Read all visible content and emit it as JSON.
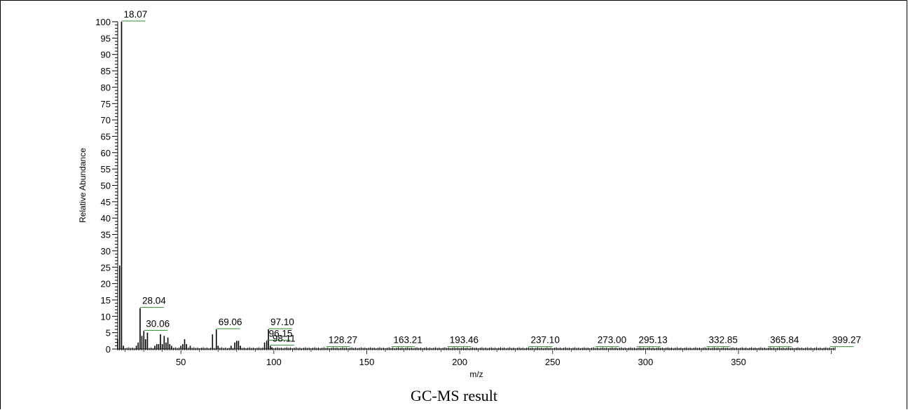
{
  "chart_data": {
    "type": "bar",
    "subtype": "mass-spectrum",
    "xlabel": "m/z",
    "ylabel": "Relative Abundance",
    "xlim": [
      16,
      402
    ],
    "ylim": [
      0,
      100
    ],
    "x_ticks": [
      50,
      100,
      150,
      200,
      250,
      300,
      350
    ],
    "y_ticks": [
      0,
      5,
      10,
      15,
      20,
      25,
      30,
      35,
      40,
      45,
      50,
      55,
      60,
      65,
      70,
      75,
      80,
      85,
      90,
      95,
      100
    ],
    "peaks": [
      {
        "mz": 16.0,
        "abundance": 3.0
      },
      {
        "mz": 17.05,
        "abundance": 25.5
      },
      {
        "mz": 18.07,
        "abundance": 100
      },
      {
        "mz": 19.1,
        "abundance": 1.0
      },
      {
        "mz": 26.0,
        "abundance": 1.0
      },
      {
        "mz": 27.0,
        "abundance": 2.0
      },
      {
        "mz": 28.04,
        "abundance": 12.5
      },
      {
        "mz": 29.0,
        "abundance": 4.0
      },
      {
        "mz": 30.06,
        "abundance": 5.5
      },
      {
        "mz": 31.0,
        "abundance": 3.0
      },
      {
        "mz": 32.0,
        "abundance": 5.0
      },
      {
        "mz": 36.0,
        "abundance": 1.0
      },
      {
        "mz": 37.0,
        "abundance": 1.5
      },
      {
        "mz": 38.0,
        "abundance": 1.5
      },
      {
        "mz": 39.0,
        "abundance": 4.5
      },
      {
        "mz": 40.0,
        "abundance": 1.5
      },
      {
        "mz": 41.0,
        "abundance": 4.0
      },
      {
        "mz": 42.0,
        "abundance": 2.0
      },
      {
        "mz": 43.0,
        "abundance": 3.5
      },
      {
        "mz": 44.0,
        "abundance": 1.5
      },
      {
        "mz": 45.0,
        "abundance": 1.0
      },
      {
        "mz": 50.0,
        "abundance": 1.0
      },
      {
        "mz": 51.0,
        "abundance": 1.5
      },
      {
        "mz": 52.0,
        "abundance": 3.0
      },
      {
        "mz": 53.0,
        "abundance": 1.5
      },
      {
        "mz": 55.0,
        "abundance": 1.0
      },
      {
        "mz": 67.0,
        "abundance": 4.5
      },
      {
        "mz": 69.06,
        "abundance": 6.0
      },
      {
        "mz": 70.0,
        "abundance": 1.0
      },
      {
        "mz": 77.0,
        "abundance": 1.0
      },
      {
        "mz": 79.0,
        "abundance": 2.0
      },
      {
        "mz": 80.0,
        "abundance": 2.5
      },
      {
        "mz": 81.0,
        "abundance": 2.5
      },
      {
        "mz": 82.0,
        "abundance": 1.0
      },
      {
        "mz": 95.0,
        "abundance": 2.0
      },
      {
        "mz": 96.15,
        "abundance": 2.5
      },
      {
        "mz": 97.1,
        "abundance": 6.0
      },
      {
        "mz": 98.11,
        "abundance": 1.0
      },
      {
        "mz": 99.0,
        "abundance": 0.5
      }
    ],
    "peak_labels": [
      {
        "mz": 18.07,
        "abundance": 100,
        "text": "18.07"
      },
      {
        "mz": 28.04,
        "abundance": 12.5,
        "text": "28.04"
      },
      {
        "mz": 30.06,
        "abundance": 5.5,
        "text": "30.06"
      },
      {
        "mz": 69.06,
        "abundance": 6.0,
        "text": "69.06"
      },
      {
        "mz": 96.15,
        "abundance": 2.5,
        "text": "96.15"
      },
      {
        "mz": 97.1,
        "abundance": 6.0,
        "text": "97.10"
      },
      {
        "mz": 98.11,
        "abundance": 1.0,
        "text": "98.11"
      },
      {
        "mz": 128.27,
        "abundance": 0.5,
        "text": "128.27"
      },
      {
        "mz": 163.21,
        "abundance": 0.5,
        "text": "163.21"
      },
      {
        "mz": 193.46,
        "abundance": 0.5,
        "text": "193.46"
      },
      {
        "mz": 237.1,
        "abundance": 0.5,
        "text": "237.10"
      },
      {
        "mz": 273.0,
        "abundance": 0.5,
        "text": "273.00"
      },
      {
        "mz": 295.13,
        "abundance": 0.5,
        "text": "295.13"
      },
      {
        "mz": 332.85,
        "abundance": 0.5,
        "text": "332.85"
      },
      {
        "mz": 365.84,
        "abundance": 0.5,
        "text": "365.84"
      },
      {
        "mz": 399.27,
        "abundance": 0.5,
        "text": "399.27"
      }
    ],
    "colors": {
      "peaks": "#000000",
      "label_leader": "#2e8b2e",
      "axis": "#000000"
    }
  },
  "caption": "GC-MS result"
}
